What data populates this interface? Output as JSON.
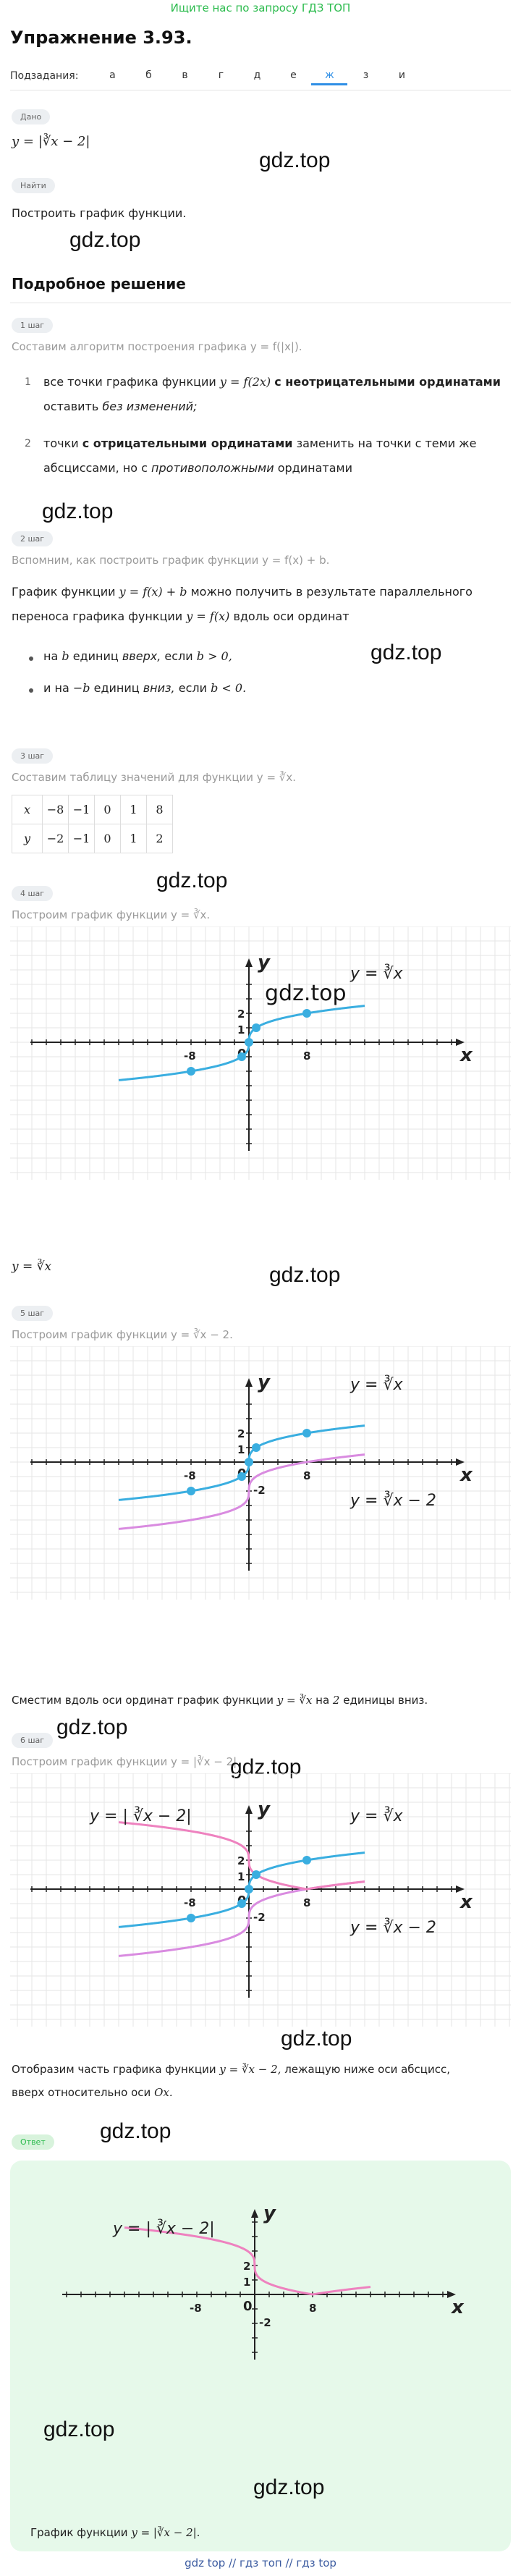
{
  "top_link": "Ищите нас по запросу ГДЗ ТОП",
  "title": "Упражнение 3.93.",
  "subtasks": {
    "label": "Подзадания:",
    "items": [
      "а",
      "б",
      "в",
      "г",
      "д",
      "е",
      "ж",
      "з",
      "и"
    ],
    "active_index": 6
  },
  "watermark": "gdz.top",
  "given": {
    "pill": "Дано",
    "formula": "y = |∛x − 2|"
  },
  "find": {
    "pill": "Найти",
    "text": "Построить график функции."
  },
  "solution_heading": "Подробное решение",
  "steps": [
    {
      "pill": "1 шаг",
      "intro": "Составим алгоритм построения графика y = f(|x|).",
      "item1_num": "1",
      "item1_a": "все точки графика функции",
      "item1_formula": "y = f(2x)",
      "item1_b": "с неотрицательными ординатами",
      "item1_c": "оставить",
      "item1_d": "без изменений;",
      "item2_num": "2",
      "item2_a": "точки",
      "item2_b": "с отрицательными ординатами",
      "item2_c": "заменить на точки с теми же",
      "item2_d": "абсциссами, но с",
      "item2_e": "противоположными",
      "item2_f": "ординатами"
    },
    {
      "pill": "2 шаг",
      "intro": "Вспомним, как построить график функции y = f(x) + b.",
      "line1_a": "График функции",
      "line1_formula": "y = f(x) + b",
      "line1_b": "можно получить в результате параллельного",
      "line2_a": "переноса графика функции",
      "line2_formula": "y = f(x)",
      "line2_b": "вдоль оси ординат",
      "bullet1_a": "на",
      "bullet1_b": "b",
      "bullet1_c": "единиц",
      "bullet1_d": "вверх,",
      "bullet1_e": "если",
      "bullet1_f": "b > 0,",
      "bullet2_a": "и на",
      "bullet2_b": "−b",
      "bullet2_c": "единиц",
      "bullet2_d": "вниз,",
      "bullet2_e": "если",
      "bullet2_f": "b < 0."
    },
    {
      "pill": "3 шаг",
      "intro": "Составим таблицу значений для функции y = ∛x.",
      "table": {
        "x_label": "x",
        "y_label": "y",
        "x": [
          "−8",
          "−1",
          "0",
          "1",
          "8"
        ],
        "y": [
          "−2",
          "−1",
          "0",
          "1",
          "2"
        ]
      }
    },
    {
      "pill": "4 шаг",
      "intro": "Построим график функции y = ∛x.",
      "after": "y = ∛x"
    },
    {
      "pill": "5 шаг",
      "intro": "Построим график функции y = ∛x − 2.",
      "after_a": "Сместим вдоль оси ординат график функции",
      "after_formula": "y = ∛x",
      "after_b": "на",
      "after_num": "2",
      "after_c": "единицы вниз."
    },
    {
      "pill": "6 шаг",
      "intro": "Построим график функции y = |∛x − 2|.",
      "after_a": "Отобразим часть графика функции",
      "after_formula": "y = ∛x − 2,",
      "after_b": "лежащую ниже оси абсцисс,",
      "after_c": "вверх относительно оси",
      "after_axis": "Ox."
    }
  ],
  "answer": {
    "pill": "Ответ",
    "text_a": "График функции",
    "text_formula": "y = |∛x − 2|."
  },
  "graph_labels": {
    "x_axis": "x",
    "y_axis": "y",
    "origin": "0",
    "tick_neg8": "-8",
    "tick_8": "8",
    "tick_2": "2",
    "tick_1": "1",
    "tick_neg2": "-2",
    "label_cbrt": "y = ∛x",
    "label_cbrt_minus2": "y = ∛x − 2",
    "label_abs": "y = | ∛x − 2|"
  },
  "footer": "gdz top // гдз топ // гдз top",
  "colors": {
    "cbrt": "#3aaee0",
    "shifted": "#d98be0",
    "abs": "#ee82bf",
    "grid": "#e6e6e6",
    "accent": "#2f8fe6",
    "green": "#2bbb4d"
  },
  "chart_data": [
    {
      "type": "line",
      "series": [
        {
          "name": "y = ∛x",
          "function": "cbrt(x)",
          "points": [
            [
              -8,
              -2
            ],
            [
              -1,
              -1
            ],
            [
              0,
              0
            ],
            [
              1,
              1
            ],
            [
              8,
              2
            ]
          ]
        }
      ],
      "xlim": [
        -18,
        17
      ],
      "ylim": [
        -4,
        4.5
      ]
    },
    {
      "type": "line",
      "series": [
        {
          "name": "y = ∛x",
          "function": "cbrt(x)"
        },
        {
          "name": "y = ∛x − 2",
          "function": "cbrt(x)-2"
        }
      ],
      "xlim": [
        -18,
        17
      ],
      "ylim": [
        -4,
        4.5
      ]
    },
    {
      "type": "line",
      "series": [
        {
          "name": "y = ∛x",
          "function": "cbrt(x)"
        },
        {
          "name": "y = ∛x − 2",
          "function": "cbrt(x)-2"
        },
        {
          "name": "y = | ∛x − 2|",
          "function": "abs(cbrt(x)-2)"
        }
      ],
      "xlim": [
        -18,
        17
      ],
      "ylim": [
        -4,
        4.5
      ]
    },
    {
      "type": "line",
      "series": [
        {
          "name": "y = | ∛x − 2|",
          "function": "abs(cbrt(x)-2)"
        }
      ],
      "xlim": [
        -18,
        17
      ],
      "ylim": [
        -4,
        4.5
      ]
    }
  ]
}
